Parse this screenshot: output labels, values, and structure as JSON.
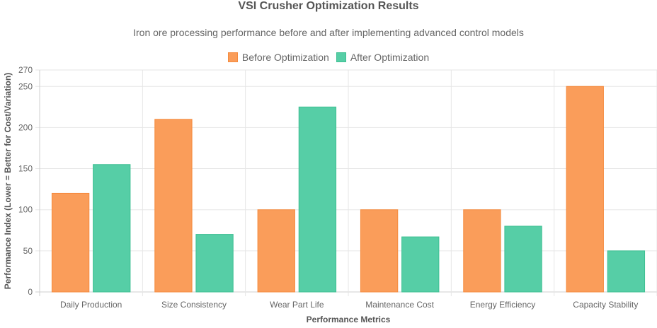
{
  "chart_data": {
    "type": "bar",
    "title": "VSI Crusher Optimization Results",
    "subtitle": "Iron ore processing performance before and after implementing advanced control models",
    "xlabel": "Performance Metrics",
    "ylabel": "Performance Index (Lower = Better for Cost/Variation)",
    "ylim": [
      0,
      270
    ],
    "yticks": [
      0,
      50,
      100,
      150,
      200,
      250,
      270
    ],
    "grid": true,
    "legend_position": "top-center",
    "categories": [
      "Daily Production",
      "Size Consistency",
      "Wear Part Life",
      "Maintenance Cost",
      "Energy Efficiency",
      "Capacity Stability"
    ],
    "series": [
      {
        "name": "Before Optimization",
        "values": [
          120,
          210,
          100,
          100,
          100,
          250
        ],
        "color": "#fa9d5a",
        "border": "#f58a3d"
      },
      {
        "name": "After Optimization",
        "values": [
          155,
          70,
          225,
          67,
          80,
          50
        ],
        "color": "#56cea6",
        "border": "#3dbf92"
      }
    ]
  }
}
